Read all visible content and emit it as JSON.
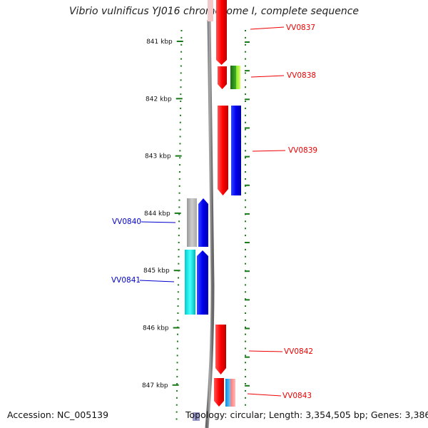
{
  "title": "Vibrio vulnificus YJ016 chromosome I, complete sequence",
  "footer": {
    "accession": "Accession: NC_005139",
    "summary": "Topology: circular; Length: 3,354,505 bp; Genes: 3,386"
  },
  "axis": {
    "ticks": [
      {
        "label": "841 kbp",
        "kbp": 841
      },
      {
        "label": "842 kbp",
        "kbp": 842
      },
      {
        "label": "843 kbp",
        "kbp": 843
      },
      {
        "label": "844 kbp",
        "kbp": 844
      },
      {
        "label": "845 kbp",
        "kbp": 845
      },
      {
        "label": "846 kbp",
        "kbp": 846
      },
      {
        "label": "847 kbp",
        "kbp": 847
      }
    ]
  },
  "colors": {
    "red": "#ff0000",
    "blue": "#0000ee",
    "gray": "#bbbbbb",
    "cyan": "#00e5e5",
    "green": "#2e9a1e",
    "lime": "#b7ff3c",
    "pink": "#ff9a9a",
    "lightblue": "#33aaee",
    "tick": "#1a7a1a",
    "label_red": "#ee0000",
    "label_blue": "#0000cc"
  },
  "genes": {
    "red_labels": [
      {
        "label": "VV0837"
      },
      {
        "label": "VV0838"
      },
      {
        "label": "VV0839"
      },
      {
        "label": "VV0842"
      },
      {
        "label": "VV0843"
      }
    ],
    "blue_labels": [
      {
        "label": "VV0840"
      },
      {
        "label": "VV0841"
      }
    ]
  }
}
